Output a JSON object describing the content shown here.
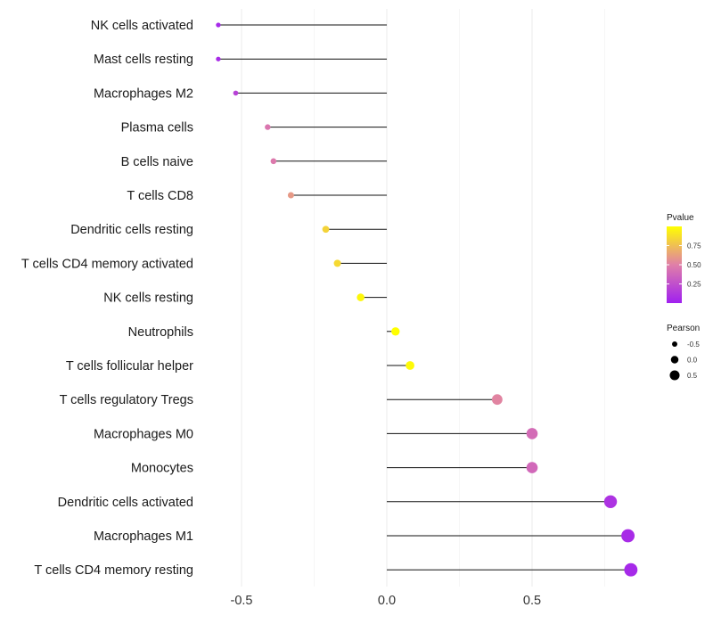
{
  "chart_data": {
    "type": "lollipop",
    "xlim": [
      -0.6,
      0.9
    ],
    "x_ticks": [
      -0.5,
      0.0,
      0.5
    ],
    "x_tick_labels": [
      "-0.5",
      "0.0",
      "0.5"
    ],
    "categories": [
      "NK cells activated",
      "Mast cells resting",
      "Macrophages M2",
      "Plasma cells",
      "B cells naive",
      "T cells CD8",
      "Dendritic cells resting",
      "T cells CD4 memory activated",
      "NK cells resting",
      "Neutrophils",
      "T cells follicular helper",
      "T cells regulatory  Tregs",
      "Macrophages M0",
      "Monocytes",
      "Dendritic cells activated",
      "Macrophages M1",
      "T cells CD4 memory resting"
    ],
    "pearson": [
      -0.58,
      -0.58,
      -0.52,
      -0.41,
      -0.39,
      -0.33,
      -0.21,
      -0.17,
      -0.09,
      0.03,
      0.08,
      0.38,
      0.5,
      0.5,
      0.77,
      0.83,
      0.84
    ],
    "pvalue": [
      0.05,
      0.06,
      0.18,
      0.45,
      0.47,
      0.6,
      0.83,
      0.85,
      0.97,
      1.0,
      0.98,
      0.52,
      0.4,
      0.38,
      0.1,
      0.06,
      0.05
    ],
    "legend": {
      "color": {
        "title": "Pvalue",
        "ticks": [
          "0.75",
          "0.50",
          "0.25"
        ],
        "tick_values": [
          0.75,
          0.5,
          0.25
        ],
        "range": [
          0.0,
          1.0
        ],
        "low_color": "#a020f0",
        "mid_color": "#e07fa8",
        "high_color": "#ffff00"
      },
      "size": {
        "title": "Pearson",
        "labels": [
          "-0.5",
          "0.0",
          "0.5"
        ],
        "values": [
          -0.5,
          0.0,
          0.5
        ]
      },
      "placement": "right"
    },
    "grid_major": true,
    "grid_minor": true,
    "title": "",
    "xlabel": "",
    "ylabel": ""
  }
}
